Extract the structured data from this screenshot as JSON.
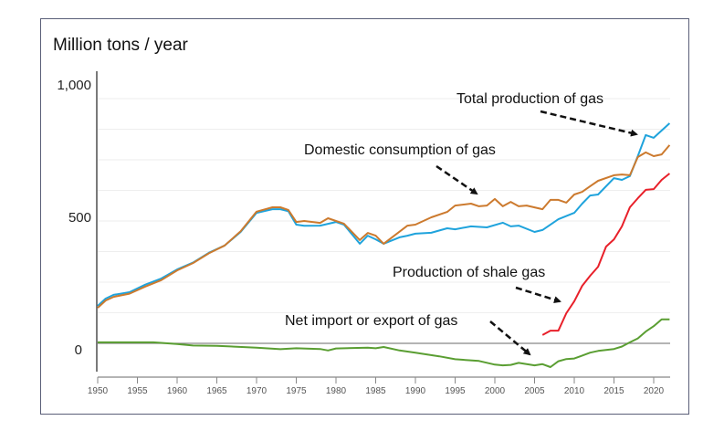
{
  "chart_data": {
    "type": "line",
    "title": "Million tons / year",
    "xlabel": "",
    "ylabel": "",
    "xlim": [
      1950,
      2022
    ],
    "ylim": [
      -140,
      1110
    ],
    "grid": true,
    "y_ticks": [
      {
        "value": 0,
        "label": "0"
      },
      {
        "value": 500,
        "label": "500"
      },
      {
        "value": 1000,
        "label": "1,000"
      }
    ],
    "x_ticks": [
      "1950",
      "1955",
      "1960",
      "1965",
      "1970",
      "1975",
      "1980",
      "1985",
      "1990",
      "1995",
      "2000",
      "2005",
      "2010",
      "2015",
      "2020"
    ],
    "series": [
      {
        "name": "Total production of gas",
        "color": "#1fa3dc",
        "points": [
          [
            1950,
            153
          ],
          [
            1951,
            183
          ],
          [
            1952,
            198
          ],
          [
            1954,
            209
          ],
          [
            1956,
            240
          ],
          [
            1958,
            265
          ],
          [
            1960,
            302
          ],
          [
            1962,
            330
          ],
          [
            1964,
            370
          ],
          [
            1966,
            400
          ],
          [
            1968,
            455
          ],
          [
            1970,
            533
          ],
          [
            1972,
            548
          ],
          [
            1973,
            548
          ],
          [
            1974,
            540
          ],
          [
            1975,
            485
          ],
          [
            1976,
            480
          ],
          [
            1978,
            481
          ],
          [
            1980,
            496
          ],
          [
            1981,
            485
          ],
          [
            1983,
            407
          ],
          [
            1984,
            440
          ],
          [
            1985,
            425
          ],
          [
            1986,
            407
          ],
          [
            1988,
            433
          ],
          [
            1989,
            440
          ],
          [
            1990,
            448
          ],
          [
            1992,
            452
          ],
          [
            1994,
            470
          ],
          [
            1995,
            466
          ],
          [
            1997,
            478
          ],
          [
            1999,
            474
          ],
          [
            2001,
            493
          ],
          [
            2002,
            478
          ],
          [
            2003,
            481
          ],
          [
            2005,
            455
          ],
          [
            2006,
            463
          ],
          [
            2008,
            507
          ],
          [
            2010,
            533
          ],
          [
            2011,
            571
          ],
          [
            2012,
            604
          ],
          [
            2013,
            608
          ],
          [
            2015,
            675
          ],
          [
            2016,
            668
          ],
          [
            2017,
            683
          ],
          [
            2018,
            765
          ],
          [
            2019,
            851
          ],
          [
            2020,
            840
          ],
          [
            2022,
            899
          ]
        ]
      },
      {
        "name": "Domestic consumption of gas",
        "color": "#cc7a2e",
        "points": [
          [
            1950,
            145
          ],
          [
            1951,
            175
          ],
          [
            1952,
            190
          ],
          [
            1954,
            203
          ],
          [
            1956,
            232
          ],
          [
            1958,
            258
          ],
          [
            1960,
            298
          ],
          [
            1962,
            328
          ],
          [
            1964,
            368
          ],
          [
            1966,
            400
          ],
          [
            1968,
            458
          ],
          [
            1970,
            538
          ],
          [
            1972,
            556
          ],
          [
            1973,
            556
          ],
          [
            1974,
            545
          ],
          [
            1975,
            496
          ],
          [
            1976,
            500
          ],
          [
            1978,
            492
          ],
          [
            1979,
            511
          ],
          [
            1981,
            489
          ],
          [
            1983,
            422
          ],
          [
            1984,
            451
          ],
          [
            1985,
            440
          ],
          [
            1986,
            407
          ],
          [
            1989,
            481
          ],
          [
            1990,
            485
          ],
          [
            1992,
            515
          ],
          [
            1994,
            537
          ],
          [
            1995,
            563
          ],
          [
            1997,
            571
          ],
          [
            1998,
            560
          ],
          [
            1999,
            563
          ],
          [
            2000,
            590
          ],
          [
            2001,
            560
          ],
          [
            2002,
            578
          ],
          [
            2003,
            560
          ],
          [
            2004,
            563
          ],
          [
            2006,
            548
          ],
          [
            2007,
            586
          ],
          [
            2008,
            586
          ],
          [
            2009,
            575
          ],
          [
            2010,
            608
          ],
          [
            2011,
            619
          ],
          [
            2012,
            642
          ],
          [
            2013,
            664
          ],
          [
            2015,
            687
          ],
          [
            2016,
            690
          ],
          [
            2017,
            687
          ],
          [
            2018,
            761
          ],
          [
            2019,
            780
          ],
          [
            2020,
            765
          ],
          [
            2021,
            772
          ],
          [
            2022,
            810
          ]
        ]
      },
      {
        "name": "Production of shale gas",
        "color": "#e8202a",
        "points": [
          [
            2006,
            34
          ],
          [
            2007,
            52
          ],
          [
            2008,
            52
          ],
          [
            2009,
            123
          ],
          [
            2010,
            172
          ],
          [
            2011,
            235
          ],
          [
            2012,
            276
          ],
          [
            2013,
            313
          ],
          [
            2014,
            395
          ],
          [
            2015,
            425
          ],
          [
            2016,
            478
          ],
          [
            2017,
            556
          ],
          [
            2018,
            593
          ],
          [
            2019,
            627
          ],
          [
            2020,
            630
          ],
          [
            2021,
            668
          ],
          [
            2022,
            694
          ]
        ]
      },
      {
        "name": "Net import or export of gas",
        "color": "#5a9e32",
        "points": [
          [
            1950,
            4
          ],
          [
            1957,
            4
          ],
          [
            1960,
            -3
          ],
          [
            1962,
            -9
          ],
          [
            1965,
            -10
          ],
          [
            1970,
            -18
          ],
          [
            1973,
            -24
          ],
          [
            1975,
            -20
          ],
          [
            1978,
            -23
          ],
          [
            1979,
            -29
          ],
          [
            1980,
            -21
          ],
          [
            1984,
            -18
          ],
          [
            1985,
            -20
          ],
          [
            1986,
            -15
          ],
          [
            1988,
            -29
          ],
          [
            1990,
            -38
          ],
          [
            1993,
            -53
          ],
          [
            1995,
            -65
          ],
          [
            1998,
            -72
          ],
          [
            2000,
            -87
          ],
          [
            2001,
            -90
          ],
          [
            2002,
            -88
          ],
          [
            2003,
            -80
          ],
          [
            2005,
            -90
          ],
          [
            2006,
            -85
          ],
          [
            2007,
            -97
          ],
          [
            2008,
            -73
          ],
          [
            2009,
            -64
          ],
          [
            2010,
            -62
          ],
          [
            2012,
            -38
          ],
          [
            2013,
            -31
          ],
          [
            2015,
            -23
          ],
          [
            2016,
            -13
          ],
          [
            2017,
            4
          ],
          [
            2018,
            20
          ],
          [
            2019,
            48
          ],
          [
            2020,
            70
          ],
          [
            2021,
            98
          ],
          [
            2022,
            98
          ]
        ]
      }
    ],
    "annotations": [
      {
        "text": "Total production of gas",
        "target": "Total production of gas"
      },
      {
        "text": "Domestic consumption of gas",
        "target": "Domestic consumption of gas"
      },
      {
        "text": "Production of shale gas",
        "target": "Production of shale gas"
      },
      {
        "text": "Net import or export of gas",
        "target": "Net import or export of gas"
      }
    ]
  }
}
